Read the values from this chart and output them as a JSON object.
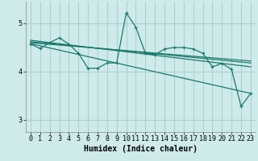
{
  "title": "",
  "xlabel": "Humidex (Indice chaleur)",
  "xlim": [
    -0.5,
    23.5
  ],
  "ylim": [
    2.75,
    5.45
  ],
  "yticks": [
    3,
    4,
    5
  ],
  "xticks": [
    0,
    1,
    2,
    3,
    4,
    5,
    6,
    7,
    8,
    9,
    10,
    11,
    12,
    13,
    14,
    15,
    16,
    17,
    18,
    19,
    20,
    21,
    22,
    23
  ],
  "bg_color": "#ceeaea",
  "grid_color": "#afd0d0",
  "line_color": "#1a7a6e",
  "line1_x": [
    0,
    1,
    2,
    3,
    4,
    5,
    6,
    7,
    8,
    9,
    10,
    11,
    12,
    13,
    14,
    15,
    16,
    17,
    18,
    19,
    20,
    21,
    22,
    23
  ],
  "line1_y": [
    4.57,
    4.48,
    4.6,
    4.7,
    4.57,
    4.38,
    4.07,
    4.07,
    4.18,
    4.18,
    5.22,
    4.92,
    4.38,
    4.35,
    4.47,
    4.5,
    4.5,
    4.47,
    4.38,
    4.1,
    4.17,
    4.05,
    3.28,
    3.55
  ],
  "reg_lines": [
    {
      "x": [
        0,
        23
      ],
      "y": [
        4.65,
        4.1
      ]
    },
    {
      "x": [
        0,
        23
      ],
      "y": [
        4.62,
        4.18
      ]
    },
    {
      "x": [
        0,
        23
      ],
      "y": [
        4.6,
        4.22
      ]
    },
    {
      "x": [
        0,
        23
      ],
      "y": [
        4.58,
        3.55
      ]
    }
  ],
  "font_name": "monospace",
  "xlabel_fontsize": 7,
  "tick_fontsize": 6
}
